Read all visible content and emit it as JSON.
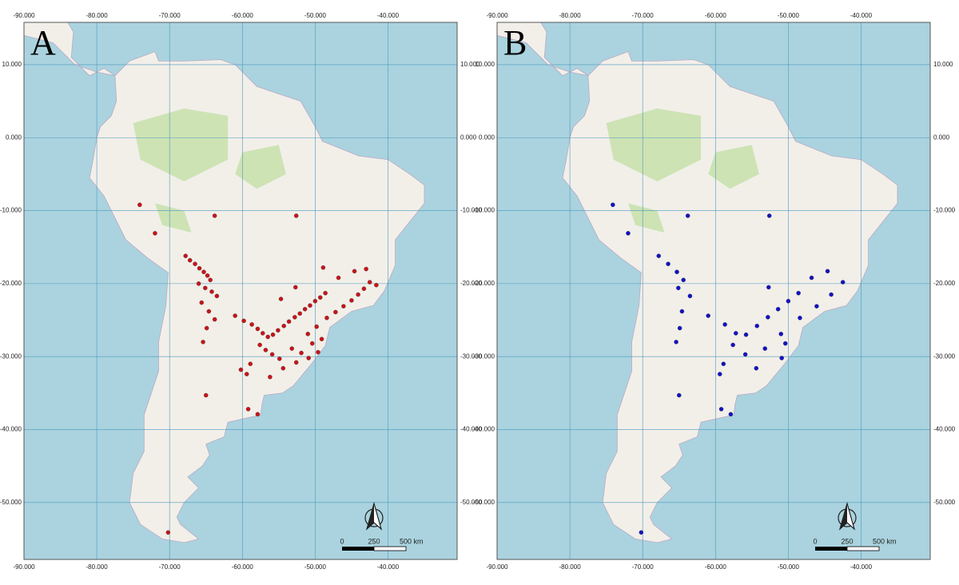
{
  "chart_data": [
    {
      "type": "scatter",
      "title": "A",
      "color": "#c8141a",
      "xlim": [
        -90,
        -30.5
      ],
      "ylim": [
        -57.8,
        15.8
      ],
      "xticks": [
        {
          "value": -90,
          "label": "-90.000"
        },
        {
          "value": -80,
          "label": "-80.000"
        },
        {
          "value": -70,
          "label": "-70.000"
        },
        {
          "value": -60,
          "label": "-60.000"
        },
        {
          "value": -50,
          "label": "-50.000"
        },
        {
          "value": -40,
          "label": "-40.000"
        }
      ],
      "yticks": [
        {
          "value": 10,
          "label": "10.000"
        },
        {
          "value": 0,
          "label": "0.000"
        },
        {
          "value": -10,
          "label": "-10.000"
        },
        {
          "value": -20,
          "label": "-20.000"
        },
        {
          "value": -30,
          "label": "-30.000"
        },
        {
          "value": -40,
          "label": "-40.000"
        },
        {
          "value": -50,
          "label": "-50.000"
        }
      ],
      "grid": true,
      "scale_bar_labels": [
        "0",
        "250",
        "500 km"
      ],
      "x": [
        -74.1,
        -72.0,
        -63.8,
        -52.6,
        -67.8,
        -67.2,
        -66.5,
        -65.9,
        -65.3,
        -64.8,
        -64.4,
        -66.0,
        -65.1,
        -64.2,
        -63.5,
        -65.6,
        -64.6,
        -63.8,
        -64.9,
        -65.4,
        -61.0,
        -59.8,
        -58.7,
        -57.9,
        -57.2,
        -56.5,
        -55.8,
        -55.1,
        -54.3,
        -53.6,
        -52.8,
        -52.1,
        -51.4,
        -50.7,
        -50.0,
        -49.3,
        -48.6,
        -57.6,
        -56.8,
        -55.9,
        -54.9,
        -53.2,
        -51.9,
        -50.4,
        -49.1,
        -58.9,
        -60.2,
        -59.4,
        -56.2,
        -54.4,
        -52.6,
        -50.9,
        -49.6,
        -51.0,
        -49.8,
        -48.4,
        -47.2,
        -46.1,
        -45.0,
        -44.1,
        -43.3,
        -42.5,
        -41.6,
        -44.6,
        -43.0,
        -46.8,
        -48.9,
        -52.7,
        -54.7,
        -65.0,
        -59.2,
        -57.9,
        -70.2
      ],
      "y": [
        -9.2,
        -13.1,
        -10.7,
        -10.7,
        -16.2,
        -16.8,
        -17.3,
        -17.9,
        -18.4,
        -18.9,
        -19.5,
        -20.0,
        -20.6,
        -21.1,
        -21.7,
        -22.6,
        -23.8,
        -24.9,
        -26.1,
        -28.0,
        -24.4,
        -25.1,
        -25.6,
        -26.2,
        -26.8,
        -27.3,
        -27.0,
        -26.4,
        -25.8,
        -25.2,
        -24.6,
        -24.1,
        -23.5,
        -23.0,
        -22.4,
        -21.9,
        -21.3,
        -28.4,
        -29.1,
        -29.7,
        -30.3,
        -28.9,
        -29.5,
        -28.2,
        -27.6,
        -31.0,
        -31.8,
        -32.4,
        -32.8,
        -31.6,
        -30.8,
        -30.2,
        -29.4,
        -26.9,
        -25.9,
        -24.7,
        -23.9,
        -23.1,
        -22.3,
        -21.5,
        -20.7,
        -19.8,
        -20.2,
        -18.3,
        -18.0,
        -19.2,
        -17.8,
        -20.5,
        -22.1,
        -35.3,
        -37.2,
        -37.9,
        -54.1
      ]
    },
    {
      "type": "scatter",
      "title": "B",
      "color": "#1212c4",
      "xlim": [
        -90,
        -30.5
      ],
      "ylim": [
        -57.8,
        15.8
      ],
      "xticks": [
        {
          "value": -90,
          "label": "-90.000"
        },
        {
          "value": -80,
          "label": "-80.000"
        },
        {
          "value": -70,
          "label": "-70.000"
        },
        {
          "value": -60,
          "label": "-60.000"
        },
        {
          "value": -50,
          "label": "-50.000"
        },
        {
          "value": -40,
          "label": "-40.000"
        }
      ],
      "yticks": [
        {
          "value": 10,
          "label": "10.000"
        },
        {
          "value": 0,
          "label": "0.000"
        },
        {
          "value": -10,
          "label": "-10.000"
        },
        {
          "value": -20,
          "label": "-20.000"
        },
        {
          "value": -30,
          "label": "-30.000"
        },
        {
          "value": -40,
          "label": "-40.000"
        },
        {
          "value": -50,
          "label": "-50.000"
        }
      ],
      "grid": true,
      "scale_bar_labels": [
        "0",
        "250",
        "500 km"
      ],
      "x": [
        -74.1,
        -72.0,
        -63.8,
        -52.6,
        -67.8,
        -66.5,
        -65.3,
        -64.4,
        -65.1,
        -63.5,
        -64.6,
        -64.9,
        -65.4,
        -61.0,
        -58.7,
        -57.2,
        -55.8,
        -54.3,
        -52.8,
        -51.4,
        -50.0,
        -48.6,
        -57.6,
        -55.9,
        -53.2,
        -50.4,
        -58.9,
        -59.4,
        -54.4,
        -50.9,
        -51.0,
        -48.4,
        -46.1,
        -44.1,
        -42.5,
        -44.6,
        -46.8,
        -52.7,
        -65.0,
        -59.2,
        -57.9,
        -70.2
      ],
      "y": [
        -9.2,
        -13.1,
        -10.7,
        -10.7,
        -16.2,
        -17.3,
        -18.4,
        -19.5,
        -20.6,
        -21.7,
        -23.8,
        -26.1,
        -28.0,
        -24.4,
        -25.6,
        -26.8,
        -27.0,
        -25.8,
        -24.6,
        -23.5,
        -22.4,
        -21.3,
        -28.4,
        -29.7,
        -28.9,
        -28.2,
        -31.0,
        -32.4,
        -31.6,
        -30.2,
        -26.9,
        -24.7,
        -23.1,
        -21.5,
        -19.8,
        -18.3,
        -19.2,
        -20.5,
        -35.3,
        -37.2,
        -37.9,
        -54.1
      ]
    }
  ]
}
